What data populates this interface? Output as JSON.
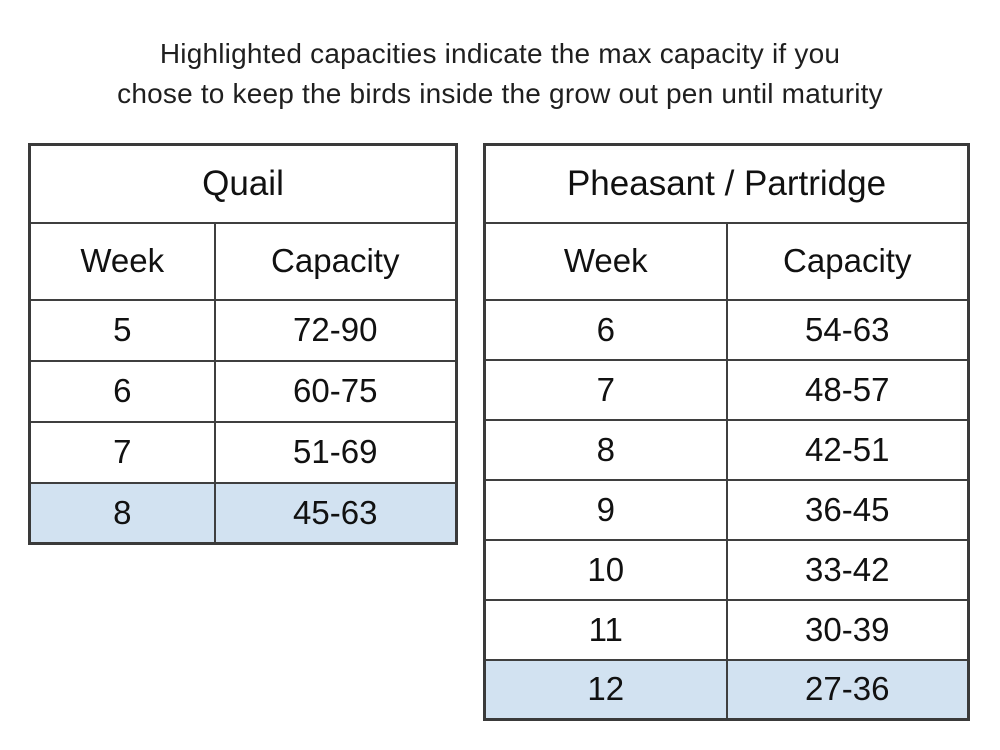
{
  "heading": {
    "line1": "Highlighted capacities indicate the max capacity if you",
    "line2": "chose to keep the birds inside the grow out pen until maturity"
  },
  "colors": {
    "highlight_fill": "#d2e2f1",
    "border": "#3f3f3f",
    "text": "#111111",
    "background": "#ffffff"
  },
  "tables": [
    {
      "title": "Quail",
      "columns": [
        "Week",
        "Capacity"
      ],
      "rows": [
        {
          "week": "5",
          "capacity": "72-90",
          "highlighted": false
        },
        {
          "week": "6",
          "capacity": "60-75",
          "highlighted": false
        },
        {
          "week": "7",
          "capacity": "51-69",
          "highlighted": false
        },
        {
          "week": "8",
          "capacity": "45-63",
          "highlighted": true
        }
      ]
    },
    {
      "title": "Pheasant / Partridge",
      "columns": [
        "Week",
        "Capacity"
      ],
      "rows": [
        {
          "week": "6",
          "capacity": "54-63",
          "highlighted": false
        },
        {
          "week": "7",
          "capacity": "48-57",
          "highlighted": false
        },
        {
          "week": "8",
          "capacity": "42-51",
          "highlighted": false
        },
        {
          "week": "9",
          "capacity": "36-45",
          "highlighted": false
        },
        {
          "week": "10",
          "capacity": "33-42",
          "highlighted": false
        },
        {
          "week": "11",
          "capacity": "30-39",
          "highlighted": false
        },
        {
          "week": "12",
          "capacity": "27-36",
          "highlighted": true
        }
      ]
    }
  ],
  "chart_data": [
    {
      "type": "table",
      "title": "Quail",
      "columns": [
        "Week",
        "Capacity"
      ],
      "rows": [
        [
          "5",
          "72-90"
        ],
        [
          "6",
          "60-75"
        ],
        [
          "7",
          "51-69"
        ],
        [
          "8",
          "45-63"
        ]
      ],
      "highlighted_rows": [
        3
      ],
      "note": "Highlighted row = max capacity if birds kept in grow out pen until maturity"
    },
    {
      "type": "table",
      "title": "Pheasant / Partridge",
      "columns": [
        "Week",
        "Capacity"
      ],
      "rows": [
        [
          "6",
          "54-63"
        ],
        [
          "7",
          "48-57"
        ],
        [
          "8",
          "42-51"
        ],
        [
          "9",
          "36-45"
        ],
        [
          "10",
          "33-42"
        ],
        [
          "11",
          "30-39"
        ],
        [
          "12",
          "27-36"
        ]
      ],
      "highlighted_rows": [
        6
      ],
      "note": "Highlighted row = max capacity if birds kept in grow out pen until maturity"
    }
  ]
}
